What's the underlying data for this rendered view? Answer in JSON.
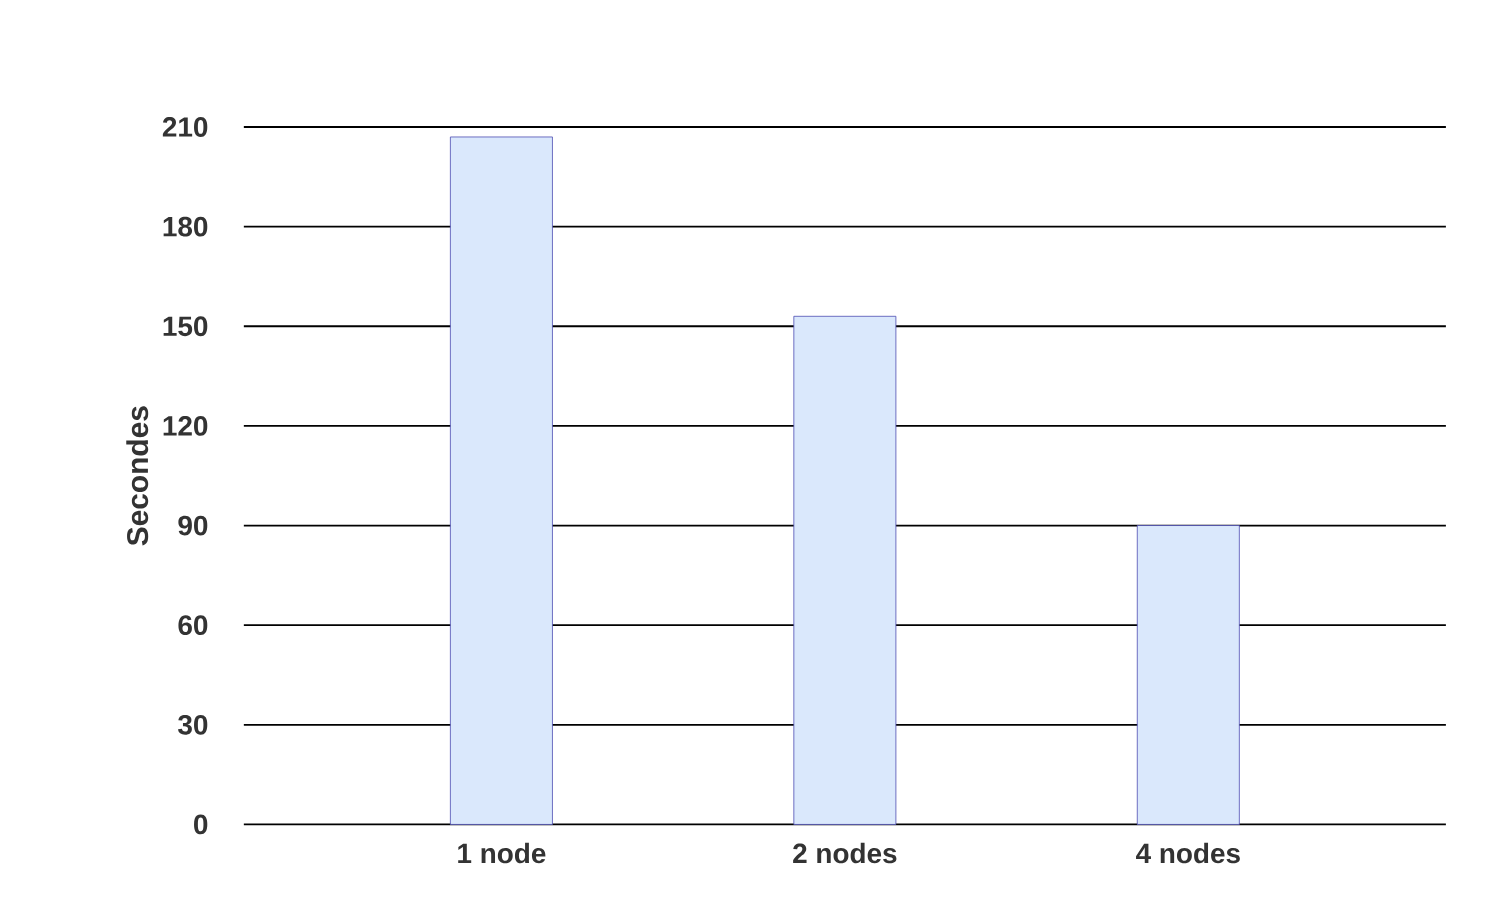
{
  "chart_data": {
    "type": "bar",
    "ylabel": "Secondes",
    "categories": [
      "1 node",
      "2 nodes",
      "4 nodes"
    ],
    "values": [
      207,
      153,
      90
    ],
    "color": "#dae8fc",
    "ylim": [
      0,
      210
    ],
    "yticks": [
      0,
      30,
      60,
      90,
      120,
      150,
      180,
      210
    ],
    "grid": "y"
  }
}
